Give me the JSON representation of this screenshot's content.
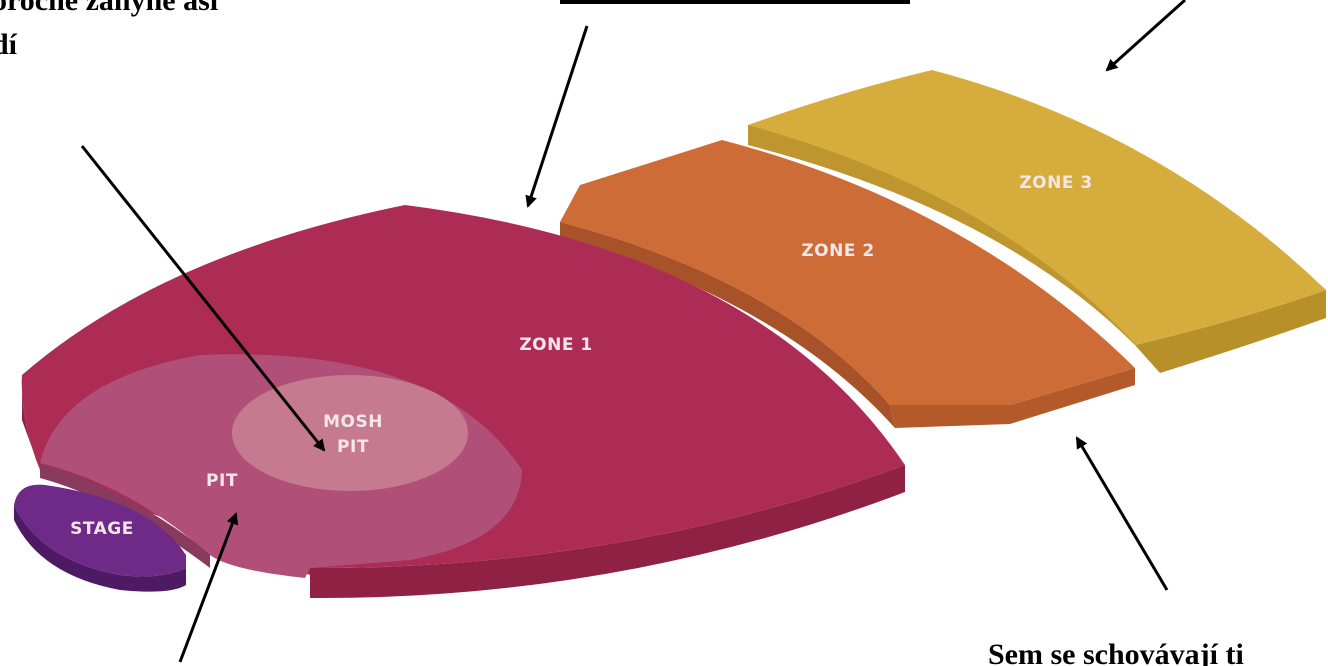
{
  "diagram": {
    "zones": {
      "stage": "STAGE",
      "pit": "PIT",
      "mosh_line1": "MOSH",
      "mosh_line2": "PIT",
      "zone1": "ZONE 1",
      "zone2": "ZONE 2",
      "zone3": "ZONE 3"
    },
    "captions": {
      "top_left_line1": "oročné záhyně asi",
      "top_left_line2": "dí",
      "bottom_right": "Sem se schovávají ti"
    },
    "colors": {
      "stage": "#6e2a86",
      "pit_outer": "#b05078",
      "mosh": "#c57a90",
      "zone1": "#ad2c55",
      "zone2": "#cd6c37",
      "zone3": "#d6ad3c"
    }
  }
}
